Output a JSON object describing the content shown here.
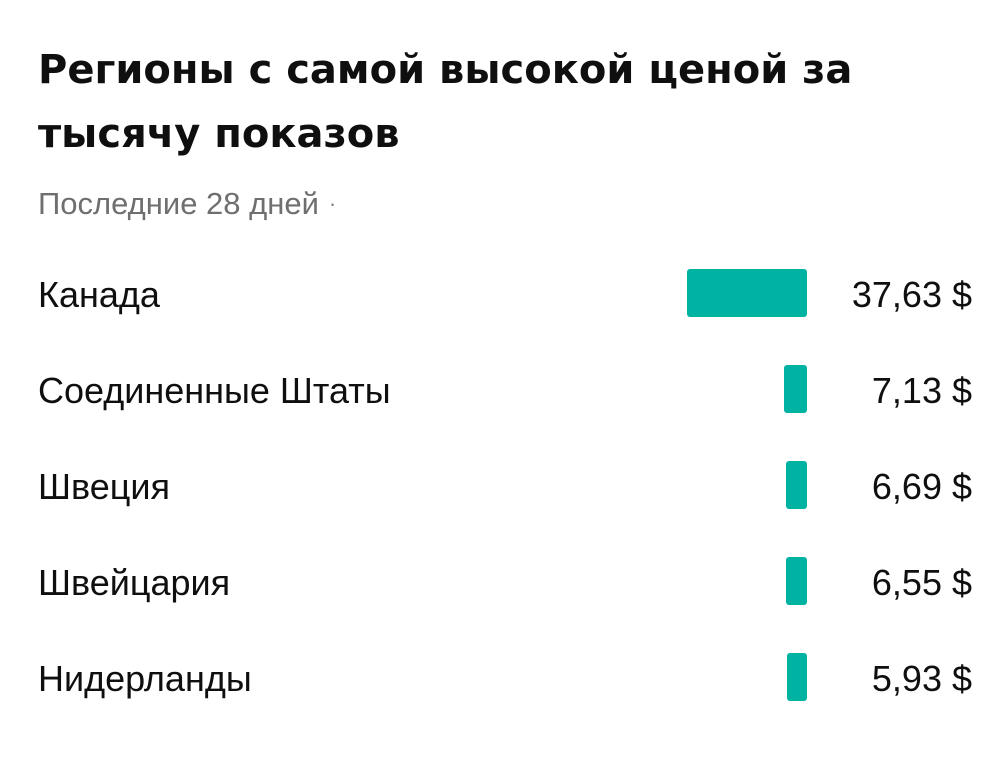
{
  "chart_data": {
    "type": "bar",
    "orientation": "horizontal",
    "title": "Регионы с самой высокой ценой за тысячу показов",
    "subtitle": "Последние 28 дней",
    "subtitle_separator": "·",
    "categories": [
      "Канада",
      "Соединенные Штаты",
      "Швеция",
      "Швейцария",
      "Нидерланды"
    ],
    "values": [
      37.63,
      7.13,
      6.69,
      6.55,
      5.93
    ],
    "value_labels": [
      "37,63 $",
      "7,13 $",
      "6,69 $",
      "6,55 $",
      "5,93 $"
    ],
    "bar_color": "#00b2a1",
    "grid": false,
    "legend": "none"
  }
}
